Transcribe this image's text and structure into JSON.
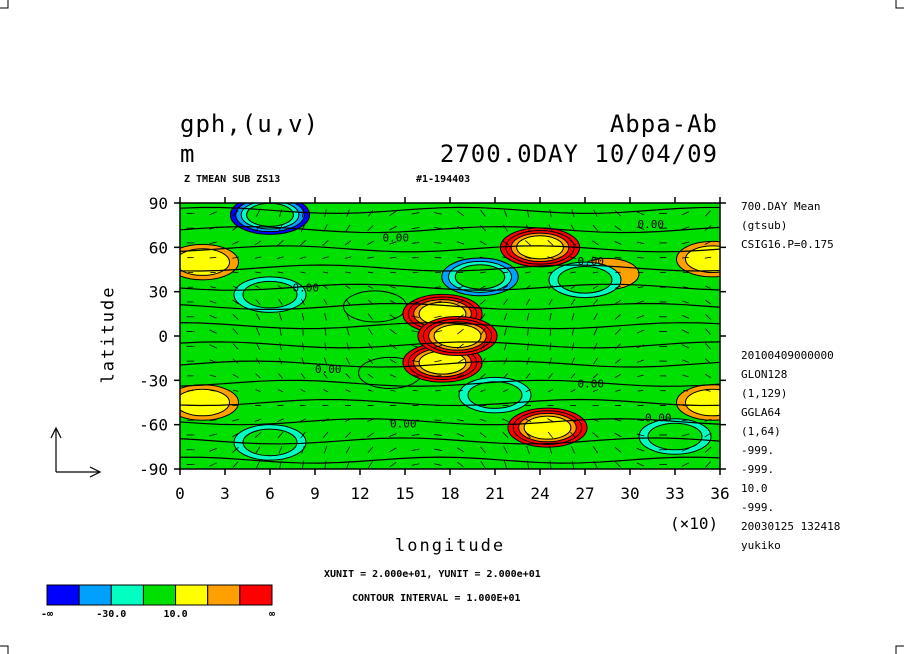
{
  "header": {
    "variable": "gph,(u,v)",
    "unit": "m",
    "experiment": "Abpa-Ab",
    "time": "2700.0DAY 10/04/09",
    "sub_left": "Z TMEAN SUB ZS13",
    "sub_mid": "#1-194403"
  },
  "side_info_top": [
    "700.DAY Mean",
    "(gtsub)",
    "CSIG16.P=0.175"
  ],
  "side_info_bottom": [
    "20100409000000",
    "GLON128",
    "(1,129)",
    "GGLA64",
    "(1,64)",
    "-999.",
    "-999.",
    "10.0",
    "-999.",
    "20030125 132418",
    "yukiko"
  ],
  "footer": {
    "units_line": "XUNIT = 2.000e+01, YUNIT = 2.000e+01",
    "contour_line": "CONTOUR INTERVAL = 1.000E+01"
  },
  "colors": [
    "#0000ff",
    "#00a0ff",
    "#00ffc0",
    "#00e000",
    "#ffff00",
    "#ffa000",
    "#ff0000"
  ],
  "colorbar_labels": [
    "-∞",
    "-30.0",
    "10.0",
    "∞"
  ],
  "contour_labels": [
    "0.00",
    "0.00",
    "0.00",
    "0.00",
    "0.00",
    "0.00",
    "0.00",
    "0.00"
  ],
  "chart_data": {
    "type": "heatmap",
    "xlabel": "longitude",
    "ylabel": "latitude",
    "x_scale_note": "(×10)",
    "xlim": [
      0,
      36
    ],
    "ylim": [
      -90,
      90
    ],
    "x_ticks": [
      "0",
      "3",
      "6",
      "9",
      "12",
      "15",
      "18",
      "21",
      "24",
      "27",
      "30",
      "33",
      "36"
    ],
    "y_ticks": [
      "90",
      "60",
      "30",
      "0",
      "-30",
      "-60",
      "-90"
    ],
    "levels": [
      -30,
      -20,
      -10,
      0,
      10,
      20,
      30
    ],
    "features": [
      {
        "x": 18.5,
        "y": 0,
        "value": 40
      },
      {
        "x": 24,
        "y": 60,
        "value": 40
      },
      {
        "x": 24.5,
        "y": -62,
        "value": 40
      },
      {
        "x": 17.5,
        "y": 15,
        "value": 35
      },
      {
        "x": 17.5,
        "y": -18,
        "value": 35
      },
      {
        "x": 1.5,
        "y": 50,
        "value": 18
      },
      {
        "x": 35.5,
        "y": 52,
        "value": 18
      },
      {
        "x": 1.5,
        "y": -45,
        "value": 18
      },
      {
        "x": 35.5,
        "y": -45,
        "value": 18
      },
      {
        "x": 28.5,
        "y": 42,
        "value": 12
      },
      {
        "x": 6,
        "y": 82,
        "value": -35
      },
      {
        "x": 20,
        "y": 40,
        "value": -30
      },
      {
        "x": 6,
        "y": 28,
        "value": -18
      },
      {
        "x": 27,
        "y": 38,
        "value": -18
      },
      {
        "x": 21,
        "y": -40,
        "value": -18
      },
      {
        "x": 6,
        "y": -72,
        "value": -18
      },
      {
        "x": 33,
        "y": -68,
        "value": -18
      },
      {
        "x": 13,
        "y": 20,
        "value": -8
      },
      {
        "x": 14,
        "y": -25,
        "value": -8
      }
    ]
  }
}
